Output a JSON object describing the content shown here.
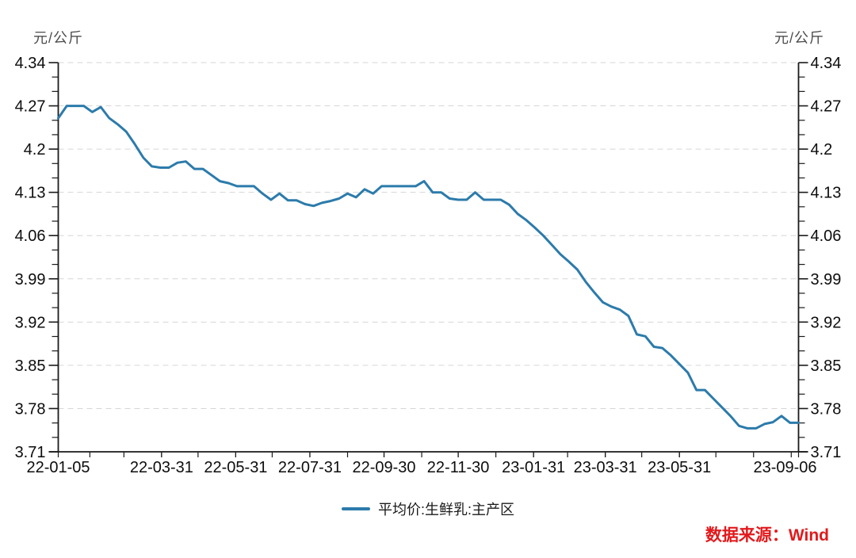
{
  "footer": {
    "source_label": "数据来源：Wind",
    "source_color": "#e2191c"
  },
  "chart_data": {
    "type": "line",
    "title": "",
    "xlabel": "",
    "ylabel": "元/公斤",
    "unit_left": "元/公斤",
    "unit_right": "元/公斤",
    "ylim": [
      3.71,
      4.34
    ],
    "yticks": [
      4.34,
      4.27,
      4.2,
      4.13,
      4.06,
      3.99,
      3.92,
      3.85,
      3.78,
      3.71
    ],
    "y_minor_divisions": 3,
    "grid": "horizontal-dashed",
    "grid_color": "#d6d6d6",
    "axis_color": "#1a1a1a",
    "tick_label_color": "#0d0d0d",
    "xlim_dates": [
      "22-01-05",
      "23-09-06"
    ],
    "xtick_labels": [
      "22-01-05",
      "22-03-31",
      "22-05-31",
      "22-07-31",
      "22-09-30",
      "22-11-30",
      "23-01-31",
      "23-03-31",
      "23-05-31",
      "23-09-06"
    ],
    "xticks_minor": [
      "22-01-31",
      "22-02-28",
      "22-03-31",
      "22-04-30",
      "22-05-31",
      "22-06-30",
      "22-07-31",
      "22-08-31",
      "22-09-30",
      "22-10-31",
      "22-11-30",
      "22-12-31",
      "23-01-31",
      "23-02-28",
      "23-03-31",
      "23-04-30",
      "23-05-31",
      "23-06-30",
      "23-07-31",
      "23-08-31"
    ],
    "legend_position": "bottom-center",
    "series": [
      {
        "name": "平均价:生鲜乳:主产区",
        "color": "#2c7bab",
        "x_dates": [
          "22-01-05",
          "22-01-12",
          "22-01-19",
          "22-01-26",
          "22-02-02",
          "22-02-09",
          "22-02-16",
          "22-02-23",
          "22-03-02",
          "22-03-09",
          "22-03-16",
          "22-03-23",
          "22-03-30",
          "22-04-06",
          "22-04-13",
          "22-04-20",
          "22-04-27",
          "22-05-04",
          "22-05-11",
          "22-05-18",
          "22-05-25",
          "22-06-01",
          "22-06-08",
          "22-06-15",
          "22-06-22",
          "22-06-29",
          "22-07-06",
          "22-07-13",
          "22-07-20",
          "22-07-27",
          "22-08-03",
          "22-08-10",
          "22-08-17",
          "22-08-24",
          "22-08-31",
          "22-09-07",
          "22-09-14",
          "22-09-21",
          "22-09-28",
          "22-10-05",
          "22-10-12",
          "22-10-19",
          "22-10-26",
          "22-11-02",
          "22-11-09",
          "22-11-16",
          "22-11-23",
          "22-11-30",
          "22-12-07",
          "22-12-14",
          "22-12-21",
          "22-12-28",
          "23-01-04",
          "23-01-11",
          "23-01-18",
          "23-01-25",
          "23-02-01",
          "23-02-08",
          "23-02-15",
          "23-02-22",
          "23-03-01",
          "23-03-08",
          "23-03-15",
          "23-03-22",
          "23-03-29",
          "23-04-05",
          "23-04-12",
          "23-04-19",
          "23-04-26",
          "23-05-03",
          "23-05-10",
          "23-05-17",
          "23-05-24",
          "23-05-31",
          "23-06-07",
          "23-06-14",
          "23-06-21",
          "23-06-28",
          "23-07-05",
          "23-07-12",
          "23-07-19",
          "23-07-26",
          "23-08-02",
          "23-08-09",
          "23-08-16",
          "23-08-23",
          "23-08-30",
          "23-09-06"
        ],
        "values": [
          4.25,
          4.27,
          4.27,
          4.27,
          4.26,
          4.268,
          4.25,
          4.24,
          4.228,
          4.208,
          4.186,
          4.172,
          4.17,
          4.17,
          4.178,
          4.18,
          4.168,
          4.168,
          4.158,
          4.148,
          4.145,
          4.14,
          4.14,
          4.14,
          4.128,
          4.118,
          4.128,
          4.117,
          4.117,
          4.111,
          4.108,
          4.113,
          4.116,
          4.12,
          4.128,
          4.122,
          4.135,
          4.128,
          4.14,
          4.14,
          4.14,
          4.14,
          4.14,
          4.148,
          4.13,
          4.13,
          4.12,
          4.118,
          4.118,
          4.13,
          4.118,
          4.118,
          4.118,
          4.11,
          4.095,
          4.085,
          4.073,
          4.06,
          4.045,
          4.03,
          4.018,
          4.005,
          3.985,
          3.968,
          3.952,
          3.945,
          3.94,
          3.93,
          3.9,
          3.897,
          3.88,
          3.878,
          3.866,
          3.852,
          3.838,
          3.81,
          3.81,
          3.796,
          3.782,
          3.768,
          3.752,
          3.748,
          3.748,
          3.755,
          3.758,
          3.768,
          3.757,
          3.757
        ]
      }
    ]
  }
}
